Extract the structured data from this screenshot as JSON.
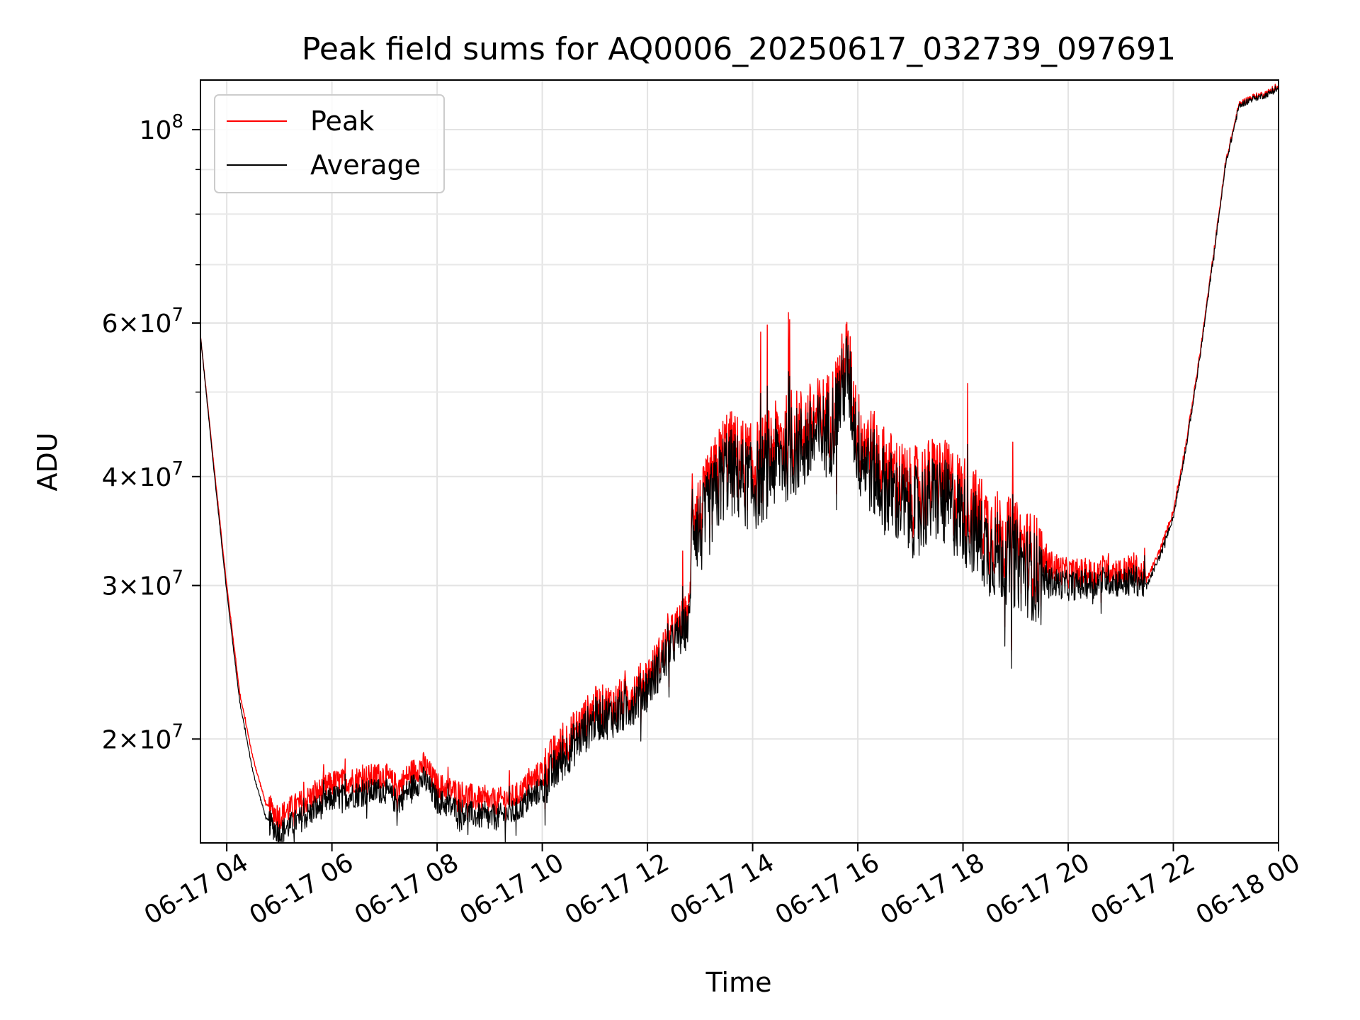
{
  "chart_data": {
    "type": "line",
    "title": "Peak field sums for AQ0006_20250617_032739_097691",
    "xlabel": "Time",
    "ylabel": "ADU",
    "y_scale": "log",
    "grid": true,
    "legend_position": "top-left",
    "xlim": [
      "06-17 03:30",
      "06-18 00:00"
    ],
    "ylim": [
      15200000,
      114000000
    ],
    "x_ticks": [
      {
        "label": "06-17 04",
        "hour": 4
      },
      {
        "label": "06-17 06",
        "hour": 6
      },
      {
        "label": "06-17 08",
        "hour": 8
      },
      {
        "label": "06-17 10",
        "hour": 10
      },
      {
        "label": "06-17 12",
        "hour": 12
      },
      {
        "label": "06-17 14",
        "hour": 14
      },
      {
        "label": "06-17 16",
        "hour": 16
      },
      {
        "label": "06-17 18",
        "hour": 18
      },
      {
        "label": "06-17 20",
        "hour": 20
      },
      {
        "label": "06-17 22",
        "hour": 22
      },
      {
        "label": "06-18 00",
        "hour": 24
      }
    ],
    "y_ticks": [
      {
        "value": 20000000,
        "mantissa": "2",
        "base": "10",
        "exp": "7"
      },
      {
        "value": 30000000,
        "mantissa": "3",
        "base": "10",
        "exp": "7"
      },
      {
        "value": 40000000,
        "mantissa": "4",
        "base": "10",
        "exp": "7"
      },
      {
        "value": 60000000,
        "mantissa": "6",
        "base": "10",
        "exp": "7"
      },
      {
        "value": 100000000,
        "mantissa": "",
        "base": "10",
        "exp": "8"
      }
    ],
    "x_hours": [
      3.5,
      3.75,
      4.0,
      4.25,
      4.5,
      4.75,
      5.0,
      5.25,
      5.5,
      6.0,
      6.5,
      7.0,
      7.25,
      7.5,
      7.75,
      8.0,
      8.5,
      9.0,
      9.5,
      10.0,
      10.5,
      11.0,
      11.5,
      12.0,
      12.5,
      12.8,
      12.85,
      13.0,
      13.5,
      14.0,
      14.5,
      15.0,
      15.5,
      15.8,
      16.0,
      16.5,
      17.0,
      17.5,
      18.0,
      18.5,
      19.0,
      19.5,
      20.0,
      20.5,
      20.75,
      21.0,
      21.25,
      21.5,
      21.75,
      22.0,
      22.25,
      22.5,
      22.75,
      23.0,
      23.25,
      23.5,
      23.75,
      24.0
    ],
    "series": [
      {
        "name": "Peak",
        "color": "#ff0000",
        "values": [
          58000000,
          41500000,
          30000000,
          22500000,
          19000000,
          16800000,
          16300000,
          16700000,
          17000000,
          17800000,
          18000000,
          18200000,
          17600000,
          18300000,
          18700000,
          17700000,
          17300000,
          16900000,
          17200000,
          18400000,
          20000000,
          21700000,
          22000000,
          23500000,
          26500000,
          28000000,
          38000000,
          36000000,
          43000000,
          41000000,
          44000000,
          45500000,
          47500000,
          55000000,
          45000000,
          41000000,
          38500000,
          40000000,
          38000000,
          35000000,
          33500000,
          32000000,
          31000000,
          31000000,
          31500000,
          31000000,
          31500000,
          30500000,
          33000000,
          36500000,
          44000000,
          55000000,
          71000000,
          92000000,
          107000000,
          109000000,
          110000000,
          112000000
        ]
      },
      {
        "name": "Average",
        "color": "#000000",
        "values": [
          58000000,
          41000000,
          29500000,
          22000000,
          18300000,
          16200000,
          15600000,
          16000000,
          16300000,
          17100000,
          17300000,
          17500000,
          16900000,
          17600000,
          18000000,
          17000000,
          16500000,
          16200000,
          16500000,
          17600000,
          19400000,
          21100000,
          21400000,
          22900000,
          25800000,
          27200000,
          36500000,
          34500000,
          41000000,
          39000000,
          42000000,
          43500000,
          45500000,
          53000000,
          43000000,
          39000000,
          36500000,
          38000000,
          36000000,
          33000000,
          32000000,
          30500000,
          30000000,
          30200000,
          30500000,
          30200000,
          30500000,
          30000000,
          32500000,
          36000000,
          43500000,
          54500000,
          70500000,
          91500000,
          106500000,
          108500000,
          109500000,
          111500000
        ]
      }
    ]
  }
}
